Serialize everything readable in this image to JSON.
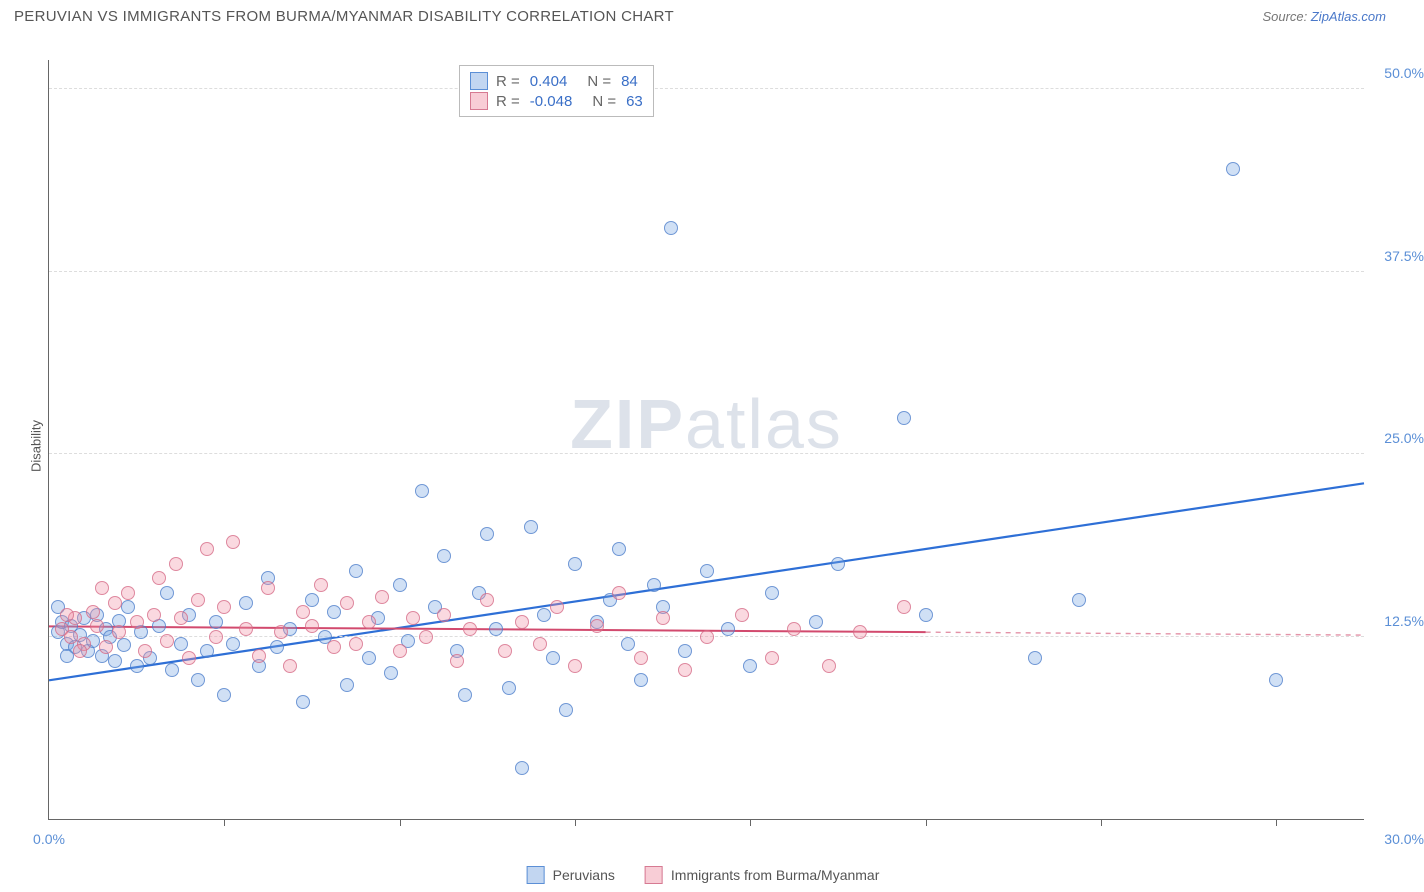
{
  "title": "PERUVIAN VS IMMIGRANTS FROM BURMA/MYANMAR DISABILITY CORRELATION CHART",
  "source_prefix": "Source: ",
  "source_link": "ZipAtlas.com",
  "y_axis_label": "Disability",
  "watermark_a": "ZIP",
  "watermark_b": "atlas",
  "chart": {
    "type": "scatter",
    "xlim": [
      0,
      30
    ],
    "ylim": [
      0,
      52
    ],
    "x_ticks": [
      0,
      4,
      8,
      12,
      16,
      20,
      24,
      28,
      30
    ],
    "x_tick_labels_shown": {
      "0": "0.0%",
      "30": "30.0%"
    },
    "y_ticks": [
      12.5,
      25.0,
      37.5,
      50.0
    ],
    "y_tick_labels": [
      "12.5%",
      "25.0%",
      "37.5%",
      "50.0%"
    ],
    "grid_color": "#dddddd",
    "axis_color": "#666666",
    "tick_label_color": "#5b8fd6",
    "background_color": "#ffffff",
    "marker_radius": 7,
    "series": [
      {
        "key": "blue",
        "label": "Peruvians",
        "fill": "rgba(120,165,225,0.35)",
        "stroke": "rgba(70,120,200,0.7)",
        "R": "0.404",
        "N": "84",
        "trend": {
          "x1": 0,
          "y1": 9.5,
          "x2": 30,
          "y2": 23.0,
          "color": "#2e6fd6",
          "width": 2.2,
          "dash_after_x": null
        },
        "points": [
          [
            0.2,
            12.8
          ],
          [
            0.3,
            13.5
          ],
          [
            0.4,
            12.0
          ],
          [
            0.5,
            13.2
          ],
          [
            0.6,
            11.8
          ],
          [
            0.7,
            12.6
          ],
          [
            0.8,
            13.8
          ],
          [
            0.9,
            11.5
          ],
          [
            1.0,
            12.2
          ],
          [
            1.1,
            14.0
          ],
          [
            1.2,
            11.2
          ],
          [
            1.3,
            13.0
          ],
          [
            1.4,
            12.5
          ],
          [
            1.5,
            10.8
          ],
          [
            1.6,
            13.6
          ],
          [
            1.7,
            11.9
          ],
          [
            1.8,
            14.5
          ],
          [
            2.0,
            10.5
          ],
          [
            2.1,
            12.8
          ],
          [
            2.3,
            11.0
          ],
          [
            2.5,
            13.2
          ],
          [
            2.7,
            15.5
          ],
          [
            2.8,
            10.2
          ],
          [
            3.0,
            12.0
          ],
          [
            3.2,
            14.0
          ],
          [
            3.4,
            9.5
          ],
          [
            3.6,
            11.5
          ],
          [
            3.8,
            13.5
          ],
          [
            4.0,
            8.5
          ],
          [
            4.2,
            12.0
          ],
          [
            4.5,
            14.8
          ],
          [
            4.8,
            10.5
          ],
          [
            5.0,
            16.5
          ],
          [
            5.2,
            11.8
          ],
          [
            5.5,
            13.0
          ],
          [
            5.8,
            8.0
          ],
          [
            6.0,
            15.0
          ],
          [
            6.3,
            12.5
          ],
          [
            6.5,
            14.2
          ],
          [
            6.8,
            9.2
          ],
          [
            7.0,
            17.0
          ],
          [
            7.3,
            11.0
          ],
          [
            7.5,
            13.8
          ],
          [
            7.8,
            10.0
          ],
          [
            8.0,
            16.0
          ],
          [
            8.2,
            12.2
          ],
          [
            8.5,
            22.5
          ],
          [
            8.8,
            14.5
          ],
          [
            9.0,
            18.0
          ],
          [
            9.3,
            11.5
          ],
          [
            9.5,
            8.5
          ],
          [
            9.8,
            15.5
          ],
          [
            10.0,
            19.5
          ],
          [
            10.2,
            13.0
          ],
          [
            10.5,
            9.0
          ],
          [
            10.8,
            3.5
          ],
          [
            11.0,
            20.0
          ],
          [
            11.3,
            14.0
          ],
          [
            11.5,
            11.0
          ],
          [
            11.8,
            7.5
          ],
          [
            12.0,
            17.5
          ],
          [
            12.5,
            13.5
          ],
          [
            12.8,
            15.0
          ],
          [
            13.0,
            18.5
          ],
          [
            13.2,
            12.0
          ],
          [
            13.5,
            9.5
          ],
          [
            13.8,
            16.0
          ],
          [
            14.0,
            14.5
          ],
          [
            14.2,
            40.5
          ],
          [
            14.5,
            11.5
          ],
          [
            15.0,
            17.0
          ],
          [
            15.5,
            13.0
          ],
          [
            16.0,
            10.5
          ],
          [
            16.5,
            15.5
          ],
          [
            17.5,
            13.5
          ],
          [
            18.0,
            17.5
          ],
          [
            19.5,
            27.5
          ],
          [
            20.0,
            14.0
          ],
          [
            22.5,
            11.0
          ],
          [
            23.5,
            15.0
          ],
          [
            27.0,
            44.5
          ],
          [
            28.0,
            9.5
          ],
          [
            0.2,
            14.5
          ],
          [
            0.4,
            11.2
          ]
        ]
      },
      {
        "key": "pink",
        "label": "Immigrants from Burma/Myanmar",
        "fill": "rgba(240,145,165,0.35)",
        "stroke": "rgba(210,100,130,0.7)",
        "R": "-0.048",
        "N": "63",
        "trend": {
          "x1": 0,
          "y1": 13.2,
          "x2": 20,
          "y2": 12.8,
          "x3": 30,
          "y3": 12.6,
          "color": "#d24a6e",
          "width": 2,
          "dash_after_x": 20
        },
        "points": [
          [
            0.3,
            13.0
          ],
          [
            0.5,
            12.5
          ],
          [
            0.6,
            13.8
          ],
          [
            0.8,
            12.0
          ],
          [
            1.0,
            14.2
          ],
          [
            1.1,
            13.2
          ],
          [
            1.3,
            11.8
          ],
          [
            1.5,
            14.8
          ],
          [
            1.6,
            12.8
          ],
          [
            1.8,
            15.5
          ],
          [
            2.0,
            13.5
          ],
          [
            2.2,
            11.5
          ],
          [
            2.4,
            14.0
          ],
          [
            2.5,
            16.5
          ],
          [
            2.7,
            12.2
          ],
          [
            2.9,
            17.5
          ],
          [
            3.0,
            13.8
          ],
          [
            3.2,
            11.0
          ],
          [
            3.4,
            15.0
          ],
          [
            3.6,
            18.5
          ],
          [
            3.8,
            12.5
          ],
          [
            4.0,
            14.5
          ],
          [
            4.2,
            19.0
          ],
          [
            4.5,
            13.0
          ],
          [
            4.8,
            11.2
          ],
          [
            5.0,
            15.8
          ],
          [
            5.3,
            12.8
          ],
          [
            5.5,
            10.5
          ],
          [
            5.8,
            14.2
          ],
          [
            6.0,
            13.2
          ],
          [
            6.2,
            16.0
          ],
          [
            6.5,
            11.8
          ],
          [
            6.8,
            14.8
          ],
          [
            7.0,
            12.0
          ],
          [
            7.3,
            13.5
          ],
          [
            7.6,
            15.2
          ],
          [
            8.0,
            11.5
          ],
          [
            8.3,
            13.8
          ],
          [
            8.6,
            12.5
          ],
          [
            9.0,
            14.0
          ],
          [
            9.3,
            10.8
          ],
          [
            9.6,
            13.0
          ],
          [
            10.0,
            15.0
          ],
          [
            10.4,
            11.5
          ],
          [
            10.8,
            13.5
          ],
          [
            11.2,
            12.0
          ],
          [
            11.6,
            14.5
          ],
          [
            12.0,
            10.5
          ],
          [
            12.5,
            13.2
          ],
          [
            13.0,
            15.5
          ],
          [
            13.5,
            11.0
          ],
          [
            14.0,
            13.8
          ],
          [
            14.5,
            10.2
          ],
          [
            15.0,
            12.5
          ],
          [
            15.8,
            14.0
          ],
          [
            16.5,
            11.0
          ],
          [
            17.0,
            13.0
          ],
          [
            17.8,
            10.5
          ],
          [
            18.5,
            12.8
          ],
          [
            19.5,
            14.5
          ],
          [
            0.4,
            14.0
          ],
          [
            0.7,
            11.5
          ],
          [
            1.2,
            15.8
          ]
        ]
      }
    ]
  },
  "legend_top": {
    "r_label": "R =",
    "n_label": "N ="
  }
}
